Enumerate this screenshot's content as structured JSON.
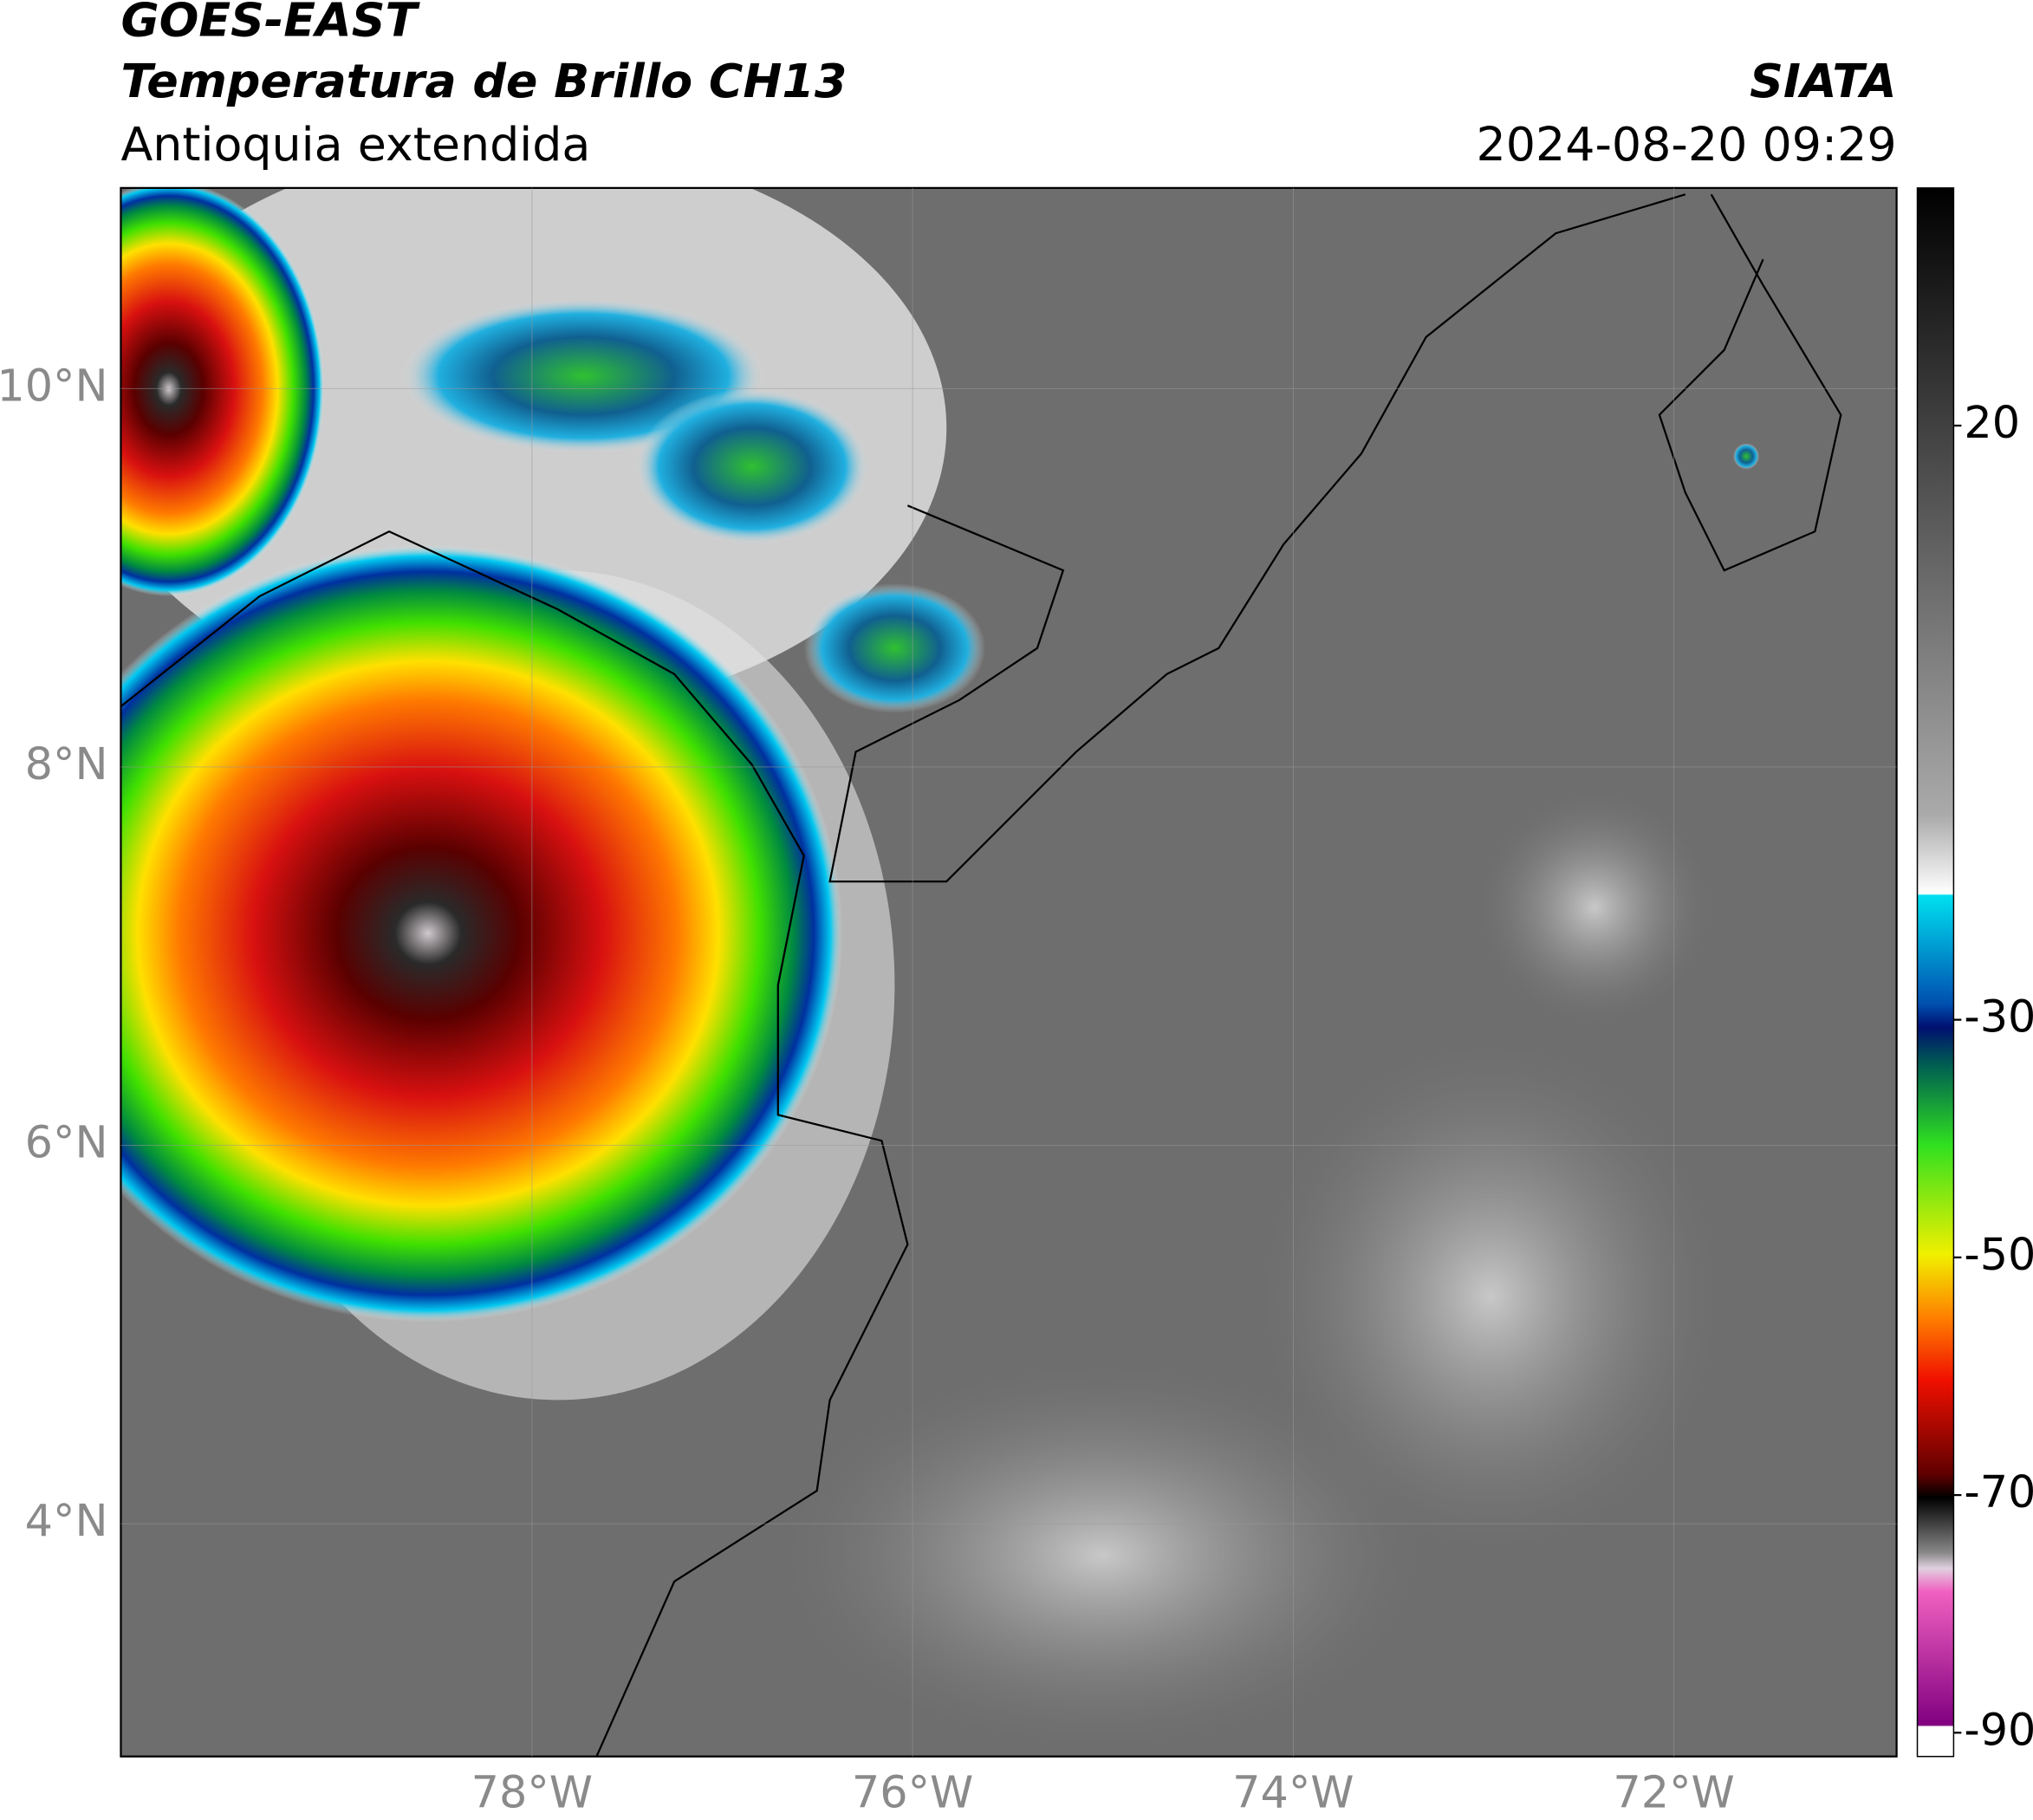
{
  "chart_data": {
    "type": "map",
    "title": "GOES-EAST",
    "subtitle": "Temperatura de Brillo CH13",
    "region": "Antioquia extendida",
    "source": "SIATA",
    "datetime": "2024-08-20 09:29",
    "xlim": [
      -80.16,
      -70.83
    ],
    "ylim": [
      2.77,
      11.06
    ],
    "xticks": [
      {
        "value": -78,
        "label": "78°W"
      },
      {
        "value": -76,
        "label": "76°W"
      },
      {
        "value": -74,
        "label": "74°W"
      },
      {
        "value": -72,
        "label": "72°W"
      }
    ],
    "yticks": [
      {
        "value": 4,
        "label": "4°N"
      },
      {
        "value": 6,
        "label": "6°N"
      },
      {
        "value": 8,
        "label": "8°N"
      },
      {
        "value": 10,
        "label": "10°N"
      }
    ],
    "grid": true,
    "colorbar": {
      "lim": [
        -92,
        40
      ],
      "ticks": [
        -90,
        -70,
        -50,
        -30,
        20
      ]
    }
  }
}
